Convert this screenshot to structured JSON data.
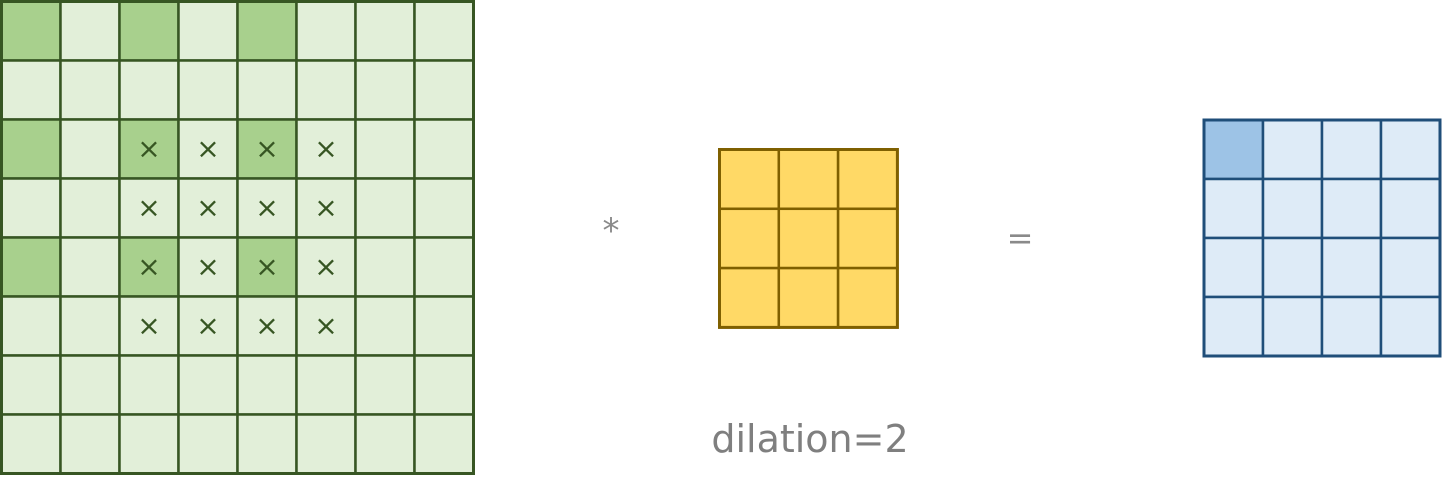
{
  "diagram": {
    "caption": "dilation=2",
    "operator_convolve": "*",
    "operator_equals": "=",
    "input_grid": {
      "rows": 8,
      "cols": 8,
      "fill_color": "#e2efd9",
      "highlight_color": "#a8d08d",
      "border_color": "#375623",
      "highlighted_cells": [
        [
          0,
          0
        ],
        [
          0,
          2
        ],
        [
          0,
          4
        ],
        [
          2,
          0
        ],
        [
          2,
          2
        ],
        [
          2,
          4
        ],
        [
          4,
          0
        ],
        [
          4,
          2
        ],
        [
          4,
          4
        ]
      ],
      "marked_cells": [
        [
          2,
          2
        ],
        [
          2,
          3
        ],
        [
          2,
          4
        ],
        [
          2,
          5
        ],
        [
          3,
          2
        ],
        [
          3,
          3
        ],
        [
          3,
          4
        ],
        [
          3,
          5
        ],
        [
          4,
          2
        ],
        [
          4,
          3
        ],
        [
          4,
          4
        ],
        [
          4,
          5
        ],
        [
          5,
          2
        ],
        [
          5,
          3
        ],
        [
          5,
          4
        ],
        [
          5,
          5
        ]
      ],
      "mark_symbol": "×"
    },
    "kernel_grid": {
      "rows": 3,
      "cols": 3,
      "fill_color": "#ffd966",
      "border_color": "#7f6000"
    },
    "output_grid": {
      "rows": 4,
      "cols": 4,
      "fill_color": "#deebf7",
      "highlight_color": "#9dc3e6",
      "border_color": "#1f4e79",
      "highlighted_cells": [
        [
          0,
          0
        ]
      ]
    }
  }
}
